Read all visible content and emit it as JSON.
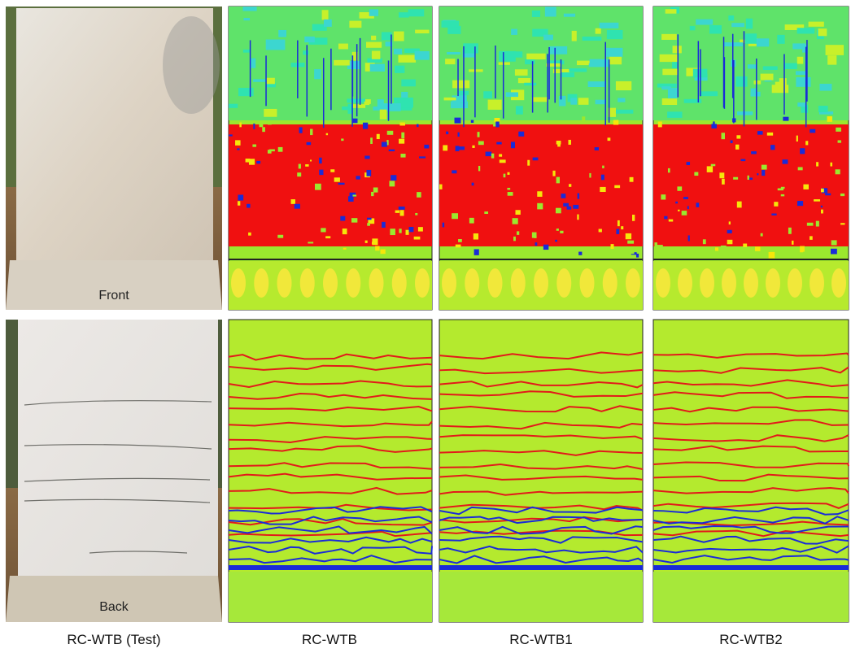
{
  "photos": [
    {
      "label": "Front"
    },
    {
      "label": "Back"
    }
  ],
  "captions": [
    "RC-WTB (Test)",
    "RC-WTB",
    "RC-WTB1",
    "RC-WTB2"
  ]
}
